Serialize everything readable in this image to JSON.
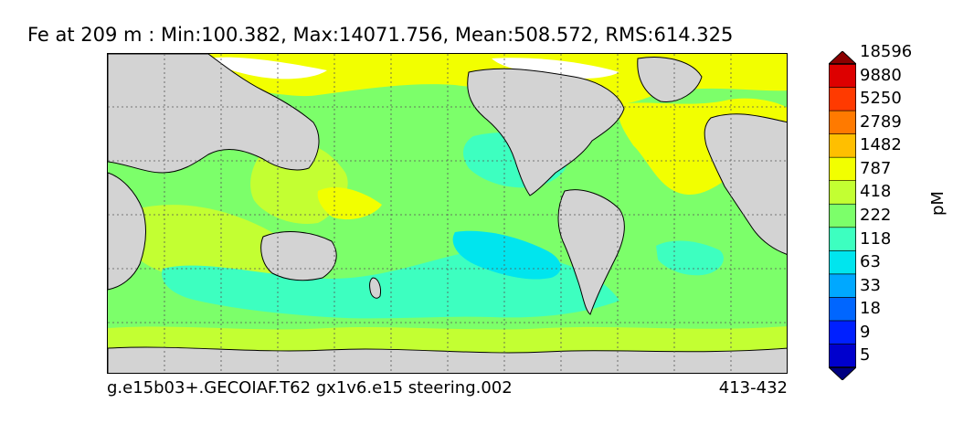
{
  "title": "Fe at 209 m : Min:100.382, Max:14071.756, Mean:508.572, RMS:614.325",
  "footer": {
    "run_name": "g.e15b03+.GECOIAF.T62 gx1v6.e15 steering.002",
    "years": "413-432"
  },
  "colorbar": {
    "unit": "pM",
    "levels": [
      "5",
      "9",
      "18",
      "33",
      "63",
      "118",
      "222",
      "418",
      "787",
      "1482",
      "2789",
      "5250",
      "9880",
      "18596"
    ],
    "colors": [
      "#000080",
      "#0000cd",
      "#0020ff",
      "#0066ff",
      "#00a8ff",
      "#00e5ee",
      "#3dffc0",
      "#7cff6a",
      "#c3ff32",
      "#f2ff00",
      "#ffbf00",
      "#ff7a00",
      "#ff3a00",
      "#dd0000",
      "#8b0000"
    ],
    "extend": "both"
  },
  "map": {
    "projection": "cylindrical equidistant",
    "land_color": "#d3d3d3",
    "grid": "dotted"
  },
  "colors": {
    "land": "#d3d3d3",
    "coast": "#000000",
    "sea_ice_or_missing": "#ffffff"
  }
}
